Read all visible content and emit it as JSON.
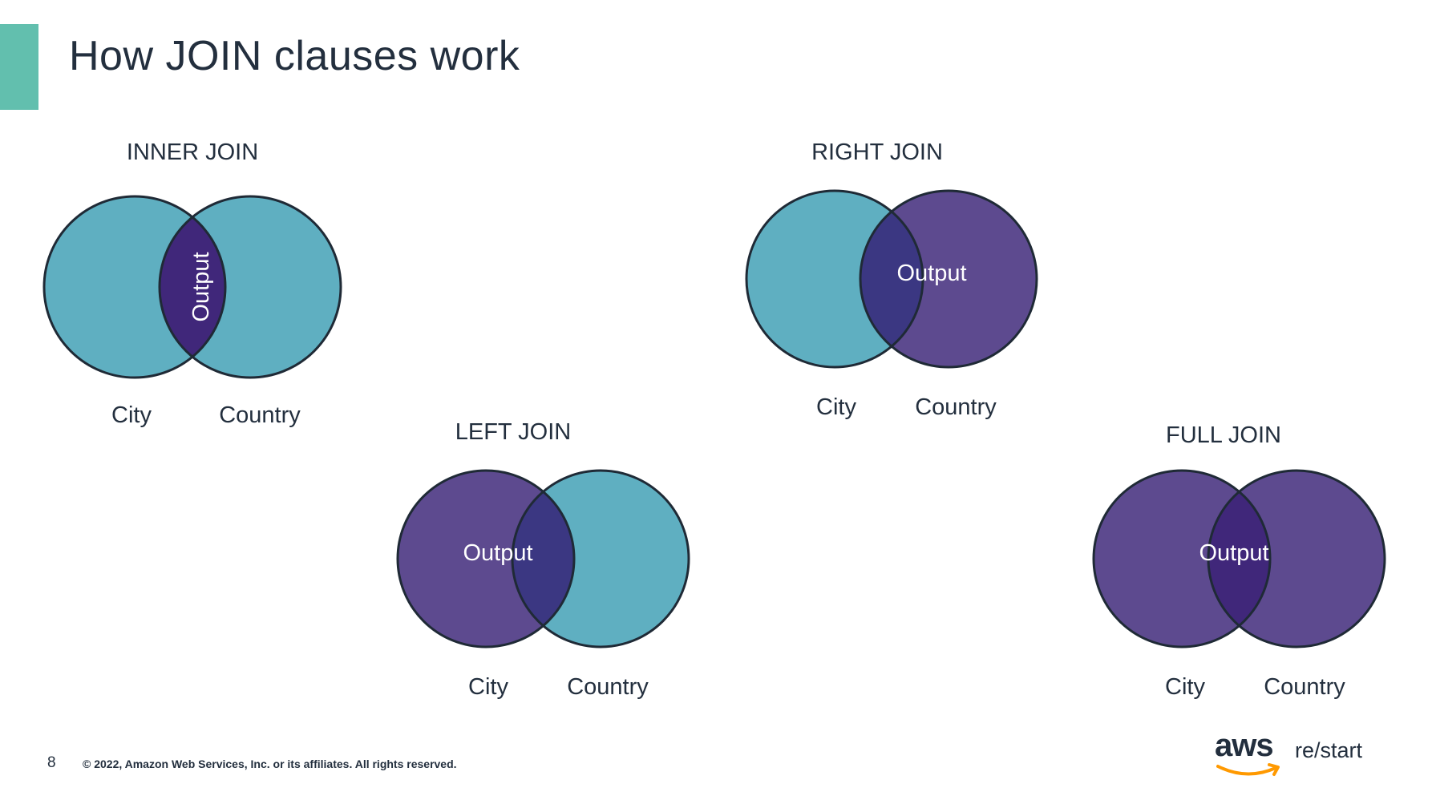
{
  "slide": {
    "title": "How JOIN clauses work",
    "page_number": "8",
    "copyright": "© 2022, Amazon Web Services, Inc. or its affiliates. All rights reserved."
  },
  "logo": {
    "aws": "aws",
    "restart": "re/start"
  },
  "colors": {
    "accent": "#62bfae",
    "teal_circle": "#5fafc1",
    "purple_circle": "#5d4a8f",
    "overlap_dark": "#3b3782",
    "overlap_darker": "#40277a",
    "outline": "#1f2a36"
  },
  "diagrams": {
    "inner": {
      "title": "INNER JOIN",
      "left": "City",
      "right": "Country",
      "output": "Output"
    },
    "right": {
      "title": "RIGHT JOIN",
      "left": "City",
      "right": "Country",
      "output": "Output"
    },
    "left": {
      "title": "LEFT JOIN",
      "left": "City",
      "right": "Country",
      "output": "Output"
    },
    "full": {
      "title": "FULL JOIN",
      "left": "City",
      "right": "Country",
      "output": "Output"
    }
  }
}
